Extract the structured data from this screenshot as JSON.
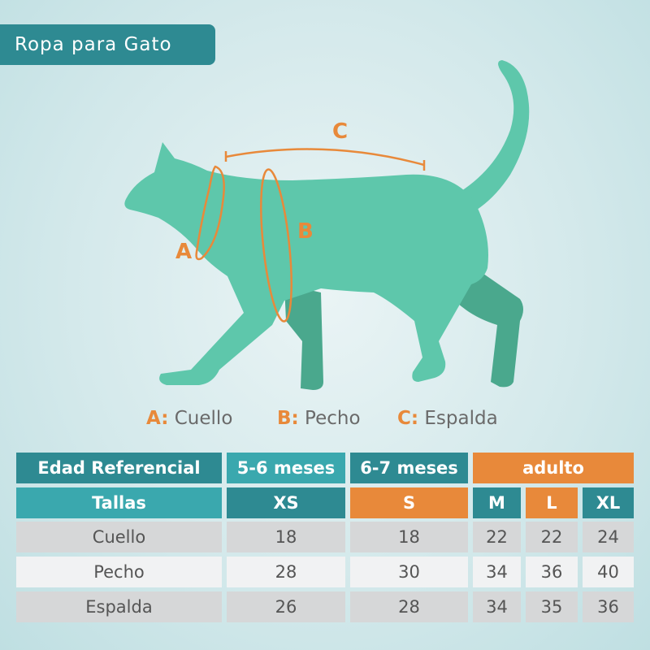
{
  "title": "Ropa para Gato",
  "diagram": {
    "labels": {
      "a": "A",
      "b": "B",
      "c": "C"
    }
  },
  "legend": [
    {
      "key": "A:",
      "text": "Cuello"
    },
    {
      "key": "B:",
      "text": "Pecho"
    },
    {
      "key": "C:",
      "text": "Espalda"
    }
  ],
  "table": {
    "header_age": {
      "label": "Edad Referencial",
      "groups": [
        "5-6 meses",
        "6-7 meses",
        "adulto"
      ]
    },
    "header_sizes": {
      "label": "Tallas",
      "sizes": [
        "XS",
        "S",
        "M",
        "L",
        "XL"
      ]
    },
    "rows": [
      {
        "label": "Cuello",
        "values": [
          "18",
          "18",
          "22",
          "22",
          "24"
        ]
      },
      {
        "label": "Pecho",
        "values": [
          "28",
          "30",
          "34",
          "36",
          "40"
        ]
      },
      {
        "label": "Espalda",
        "values": [
          "26",
          "28",
          "34",
          "35",
          "36"
        ]
      }
    ]
  },
  "colors": {
    "teal": "#2e8a92",
    "teal_light": "#3aa8ae",
    "orange": "#e8893a",
    "cat": "#5ec7ab",
    "cat_shadow": "#4aa88d"
  }
}
